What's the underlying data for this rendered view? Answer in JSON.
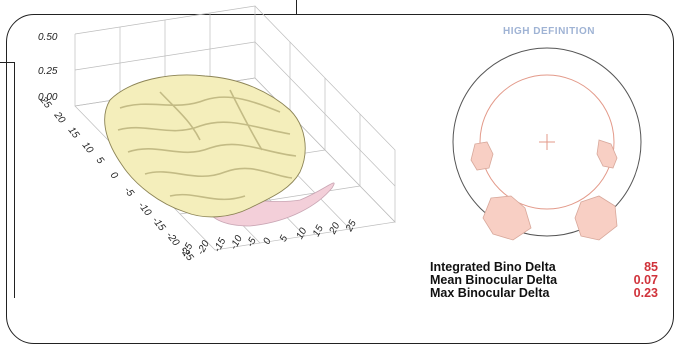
{
  "plot3d": {
    "z_ticks": [
      "0.50",
      "0.25",
      "0.00"
    ],
    "y_ticks": [
      "25",
      "20",
      "15",
      "10",
      "5",
      "0",
      "-5",
      "-10",
      "-15",
      "-20",
      "-25"
    ],
    "x_ticks": [
      "-25",
      "-20",
      "-15",
      "-10",
      "-5",
      "0",
      "5",
      "10",
      "15",
      "20",
      "25"
    ],
    "colors": {
      "surface": "#f4eebb",
      "surface_shadow": "#c9bf86",
      "pink": "#f3cfd9",
      "grid": "#bdbdbd"
    }
  },
  "map": {
    "title": "HIGH DEFINITION",
    "colors": {
      "outer_circle": "#555555",
      "inner_circle": "#e39a8a",
      "region": "#f8cfc4",
      "title": "#9fb3d4"
    }
  },
  "metrics": [
    {
      "label": "Integrated Bino Delta",
      "value": "85"
    },
    {
      "label": "Mean Binocular Delta",
      "value": "0.07"
    },
    {
      "label": "Max Binocular Delta",
      "value": "0.23"
    }
  ]
}
